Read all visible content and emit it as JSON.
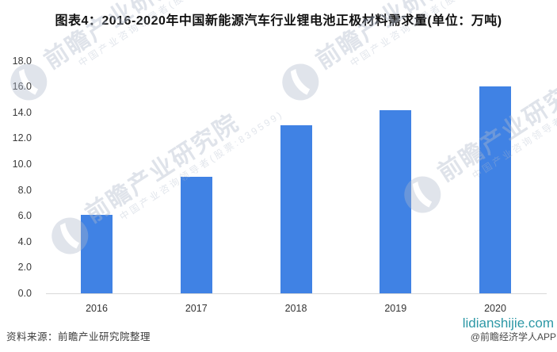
{
  "title": "图表4：2016-2020年中国新能源汽车行业锂电池正极材料需求量(单位：万吨)",
  "chart_data": {
    "type": "bar",
    "title": "图表4：2016-2020年中国新能源汽车行业锂电池正极材料需求量(单位：万吨)",
    "unit": "万吨",
    "categories": [
      "2016",
      "2017",
      "2018",
      "2019",
      "2020"
    ],
    "values": [
      6.1,
      9.0,
      13.0,
      14.2,
      16.0
    ],
    "xlabel": "",
    "ylabel": "",
    "ylim": [
      0,
      18
    ],
    "ytick_labels": [
      "0.0",
      "2.0",
      "4.0",
      "6.0",
      "8.0",
      "10.0",
      "12.0",
      "14.0",
      "16.0",
      "18.0"
    ],
    "grid": false,
    "legend": false,
    "bar_color": "#4082e4"
  },
  "watermark": {
    "line1": "前瞻产业研究院",
    "line2": "中国产业咨询领导者(股票:839599)"
  },
  "footer": {
    "source": "资料来源：前瞻产业研究院整理",
    "site": "lidianshijie.com",
    "site_color": "#2d98a6",
    "credit": "@前瞻经济学人APP"
  }
}
